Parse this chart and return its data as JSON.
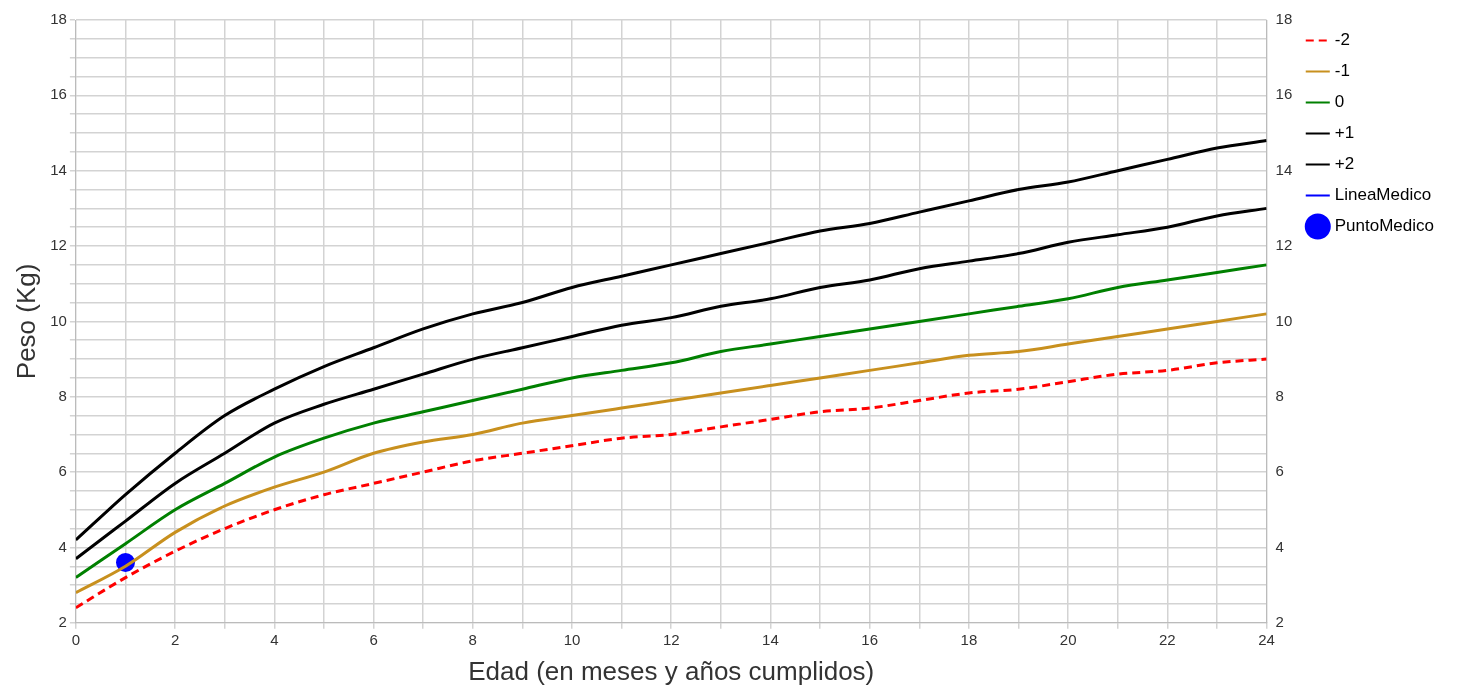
{
  "chart_data": {
    "type": "line",
    "xlabel": "Edad (en meses y años cumplidos)",
    "ylabel": "Peso (Kg)",
    "x": [
      0,
      1,
      2,
      3,
      4,
      5,
      6,
      7,
      8,
      9,
      10,
      11,
      12,
      13,
      14,
      15,
      16,
      17,
      18,
      19,
      20,
      21,
      22,
      23,
      24
    ],
    "xlim": [
      0,
      24
    ],
    "xticks": [
      0,
      {
        "value": 1,
        "label": null
      },
      2,
      {
        "value": 3,
        "label": null
      },
      4,
      {
        "value": 5,
        "label": null
      },
      6,
      {
        "value": 7,
        "label": null
      },
      8,
      {
        "value": 9,
        "label": null
      },
      10,
      {
        "value": 11,
        "label": null
      },
      12,
      {
        "value": 13,
        "label": null
      },
      14,
      {
        "value": 15,
        "label": null
      },
      16,
      {
        "value": 17,
        "label": null
      },
      18,
      {
        "value": 19,
        "label": null
      },
      20,
      {
        "value": 21,
        "label": null
      },
      22,
      {
        "value": 23,
        "label": null
      },
      24
    ],
    "ylim": [
      2,
      18
    ],
    "yticks": [
      2,
      {
        "value": 2.5,
        "label": null
      },
      {
        "value": 3,
        "label": null
      },
      {
        "value": 3.5,
        "label": null
      },
      4,
      {
        "value": 4.5,
        "label": null
      },
      {
        "value": 5,
        "label": null
      },
      {
        "value": 5.5,
        "label": null
      },
      6,
      {
        "value": 6.5,
        "label": null
      },
      {
        "value": 7,
        "label": null
      },
      {
        "value": 7.5,
        "label": null
      },
      8,
      {
        "value": 8.5,
        "label": null
      },
      {
        "value": 9,
        "label": null
      },
      {
        "value": 9.5,
        "label": null
      },
      10,
      {
        "value": 10.5,
        "label": null
      },
      {
        "value": 11,
        "label": null
      },
      {
        "value": 11.5,
        "label": null
      },
      12,
      {
        "value": 12.5,
        "label": null
      },
      {
        "value": 13,
        "label": null
      },
      {
        "value": 13.5,
        "label": null
      },
      14,
      {
        "value": 14.5,
        "label": null
      },
      {
        "value": 15,
        "label": null
      },
      {
        "value": 15.5,
        "label": null
      },
      16,
      {
        "value": 16.5,
        "label": null
      },
      {
        "value": 17,
        "label": null
      },
      {
        "value": 17.5,
        "label": null
      },
      18
    ],
    "y2lim": [
      2,
      18
    ],
    "y2ticks": [
      2,
      4,
      6,
      8,
      10,
      12,
      14,
      16,
      18
    ],
    "grid": true,
    "legend": "top right",
    "marker": "none",
    "series": [
      {
        "name": "-2",
        "color": "#ff0000",
        "line_style": "dashed",
        "values": [
          2.4,
          3.2,
          3.9,
          4.5,
          5.0,
          5.4,
          5.7,
          6.0,
          6.3,
          6.5,
          6.7,
          6.9,
          7.0,
          7.2,
          7.4,
          7.6,
          7.7,
          7.9,
          8.1,
          8.2,
          8.4,
          8.6,
          8.7,
          8.9,
          9.0
        ]
      },
      {
        "name": "-1",
        "color": "#c8901e",
        "line_style": "solid",
        "values": [
          2.8,
          3.5,
          4.4,
          5.1,
          5.6,
          6.0,
          6.5,
          6.8,
          7.0,
          7.3,
          7.5,
          7.7,
          7.9,
          8.1,
          8.3,
          8.5,
          8.7,
          8.9,
          9.1,
          9.2,
          9.4,
          9.6,
          9.8,
          10.0,
          10.2
        ]
      },
      {
        "name": "0",
        "color": "#008000",
        "line_style": "solid",
        "values": [
          3.2,
          4.1,
          5.0,
          5.7,
          6.4,
          6.9,
          7.3,
          7.6,
          7.9,
          8.2,
          8.5,
          8.7,
          8.9,
          9.2,
          9.4,
          9.6,
          9.8,
          10.0,
          10.2,
          10.4,
          10.6,
          10.9,
          11.1,
          11.3,
          11.5
        ]
      },
      {
        "name": "+1",
        "color": "#000000",
        "line_style": "solid",
        "values": [
          3.7,
          4.7,
          5.7,
          6.5,
          7.3,
          7.8,
          8.2,
          8.6,
          9.0,
          9.3,
          9.6,
          9.9,
          10.1,
          10.4,
          10.6,
          10.9,
          11.1,
          11.4,
          11.6,
          11.8,
          12.1,
          12.3,
          12.5,
          12.8,
          13.0
        ]
      },
      {
        "name": "+2",
        "color": "#000000",
        "line_style": "solid",
        "values": [
          4.2,
          5.4,
          6.5,
          7.5,
          8.2,
          8.8,
          9.3,
          9.8,
          10.2,
          10.5,
          10.9,
          11.2,
          11.5,
          11.8,
          12.1,
          12.4,
          12.6,
          12.9,
          13.2,
          13.5,
          13.7,
          14.0,
          14.3,
          14.6,
          14.8
        ]
      },
      {
        "name": "LineaMedico",
        "color": "#0000ff",
        "line_style": "solid",
        "values": [
          null,
          null,
          null,
          null,
          null,
          null,
          null,
          null,
          null,
          null,
          null,
          null,
          null,
          null,
          null,
          null,
          null,
          null,
          null,
          null,
          null,
          null,
          null,
          null,
          null
        ]
      },
      {
        "name": "PuntoMedico",
        "type": "scatter",
        "marker": "circle",
        "color": "#0000ff",
        "x": [
          1
        ],
        "values": [
          3.6
        ]
      }
    ]
  }
}
